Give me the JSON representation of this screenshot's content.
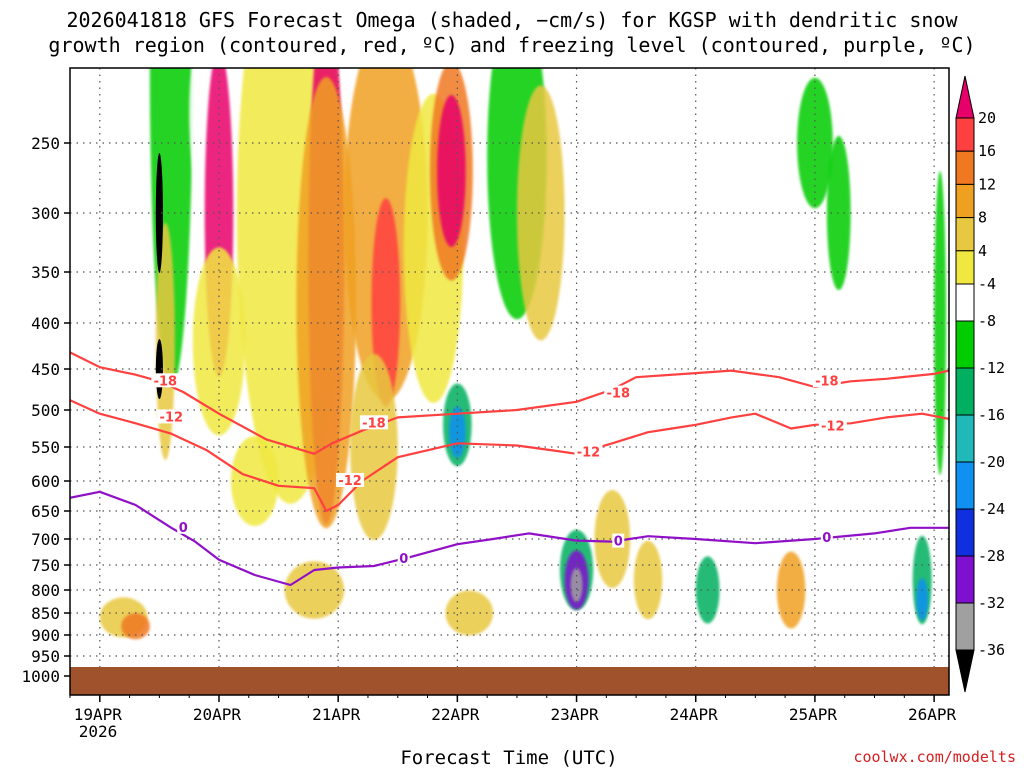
{
  "chart_data": {
    "type": "heatmap",
    "title_line1": "2026041818 GFS Forecast Omega (shaded, −cm/s) for KGSP with dendritic snow",
    "title_line2": "growth region (contoured, red, ºC) and freezing level (contoured, purple, ºC)",
    "xlabel": "Forecast Time (UTC)",
    "ylabel": "",
    "credit": "coolwx.com/modelts",
    "x_ticks": [
      "19APR",
      "20APR",
      "21APR",
      "22APR",
      "23APR",
      "24APR",
      "25APR",
      "26APR"
    ],
    "x_year": "2026",
    "x_range_days": [
      18.75,
      26.125
    ],
    "y_ticks": [
      "250",
      "300",
      "350",
      "400",
      "450",
      "500",
      "550",
      "600",
      "650",
      "700",
      "750",
      "800",
      "850",
      "900",
      "950",
      "1000"
    ],
    "y_range_hpa": [
      200,
      1000
    ],
    "colorbar_ticks": [
      "20",
      "16",
      "12",
      "8",
      "4",
      "-4",
      "-8",
      "-12",
      "-16",
      "-20",
      "-24",
      "-28",
      "-32",
      "-36"
    ],
    "colorbar_colors": [
      "#e8006a",
      "#ff4040",
      "#f07820",
      "#f0a020",
      "#e8c840",
      "#f0e840",
      "#ffffff",
      "#00cc00",
      "#00b060",
      "#20b8b8",
      "#1090f0",
      "#1030e0",
      "#8010d0",
      "#a0a0a0",
      "#000000"
    ],
    "contours": [
      {
        "name": "-18 C isotherm",
        "color": "#ff4040",
        "label": "-18",
        "points": [
          [
            18.75,
            432
          ],
          [
            19.0,
            448
          ],
          [
            19.3,
            457
          ],
          [
            19.5,
            465
          ],
          [
            19.7,
            478
          ],
          [
            20.0,
            505
          ],
          [
            20.4,
            540
          ],
          [
            20.8,
            560
          ],
          [
            20.95,
            545
          ],
          [
            21.2,
            528
          ],
          [
            21.5,
            510
          ],
          [
            22.0,
            505
          ],
          [
            22.5,
            500
          ],
          [
            23.0,
            490
          ],
          [
            23.3,
            475
          ],
          [
            23.5,
            460
          ],
          [
            24.0,
            455
          ],
          [
            24.3,
            452
          ],
          [
            24.7,
            460
          ],
          [
            25.0,
            472
          ],
          [
            25.3,
            465
          ],
          [
            25.6,
            462
          ],
          [
            26.0,
            456
          ],
          [
            26.125,
            452
          ]
        ],
        "label_positions": [
          [
            19.55,
            465
          ],
          [
            21.3,
            518
          ],
          [
            23.35,
            480
          ],
          [
            25.1,
            465
          ]
        ]
      },
      {
        "name": "-12 C isotherm",
        "color": "#ff4040",
        "label": "-12",
        "points": [
          [
            18.75,
            488
          ],
          [
            19.0,
            505
          ],
          [
            19.3,
            518
          ],
          [
            19.6,
            532
          ],
          [
            19.9,
            555
          ],
          [
            20.2,
            590
          ],
          [
            20.5,
            608
          ],
          [
            20.8,
            612
          ],
          [
            20.9,
            650
          ],
          [
            21.0,
            640
          ],
          [
            21.2,
            600
          ],
          [
            21.5,
            565
          ],
          [
            22.0,
            545
          ],
          [
            22.5,
            548
          ],
          [
            22.8,
            555
          ],
          [
            23.0,
            560
          ],
          [
            23.3,
            545
          ],
          [
            23.6,
            530
          ],
          [
            23.8,
            525
          ],
          [
            24.0,
            520
          ],
          [
            24.3,
            510
          ],
          [
            24.5,
            505
          ],
          [
            24.8,
            525
          ],
          [
            25.0,
            520
          ],
          [
            25.3,
            518
          ],
          [
            25.6,
            510
          ],
          [
            25.9,
            505
          ],
          [
            26.125,
            512
          ]
        ],
        "label_positions": [
          [
            19.6,
            510
          ],
          [
            21.1,
            600
          ],
          [
            23.1,
            558
          ],
          [
            25.15,
            522
          ]
        ]
      },
      {
        "name": "0 C freezing level",
        "color": "#9010c8",
        "label": "0",
        "points": [
          [
            18.75,
            628
          ],
          [
            19.0,
            618
          ],
          [
            19.3,
            640
          ],
          [
            19.6,
            680
          ],
          [
            19.8,
            705
          ],
          [
            20.0,
            740
          ],
          [
            20.3,
            770
          ],
          [
            20.6,
            790
          ],
          [
            20.8,
            760
          ],
          [
            21.0,
            755
          ],
          [
            21.3,
            752
          ],
          [
            21.6,
            735
          ],
          [
            22.0,
            710
          ],
          [
            22.3,
            700
          ],
          [
            22.6,
            690
          ],
          [
            23.0,
            703
          ],
          [
            23.3,
            705
          ],
          [
            23.6,
            695
          ],
          [
            24.0,
            700
          ],
          [
            24.5,
            708
          ],
          [
            25.0,
            700
          ],
          [
            25.5,
            690
          ],
          [
            25.8,
            680
          ],
          [
            26.125,
            680
          ]
        ],
        "label_positions": [
          [
            19.7,
            680
          ],
          [
            21.55,
            738
          ],
          [
            23.35,
            705
          ],
          [
            25.1,
            698
          ]
        ]
      }
    ]
  }
}
